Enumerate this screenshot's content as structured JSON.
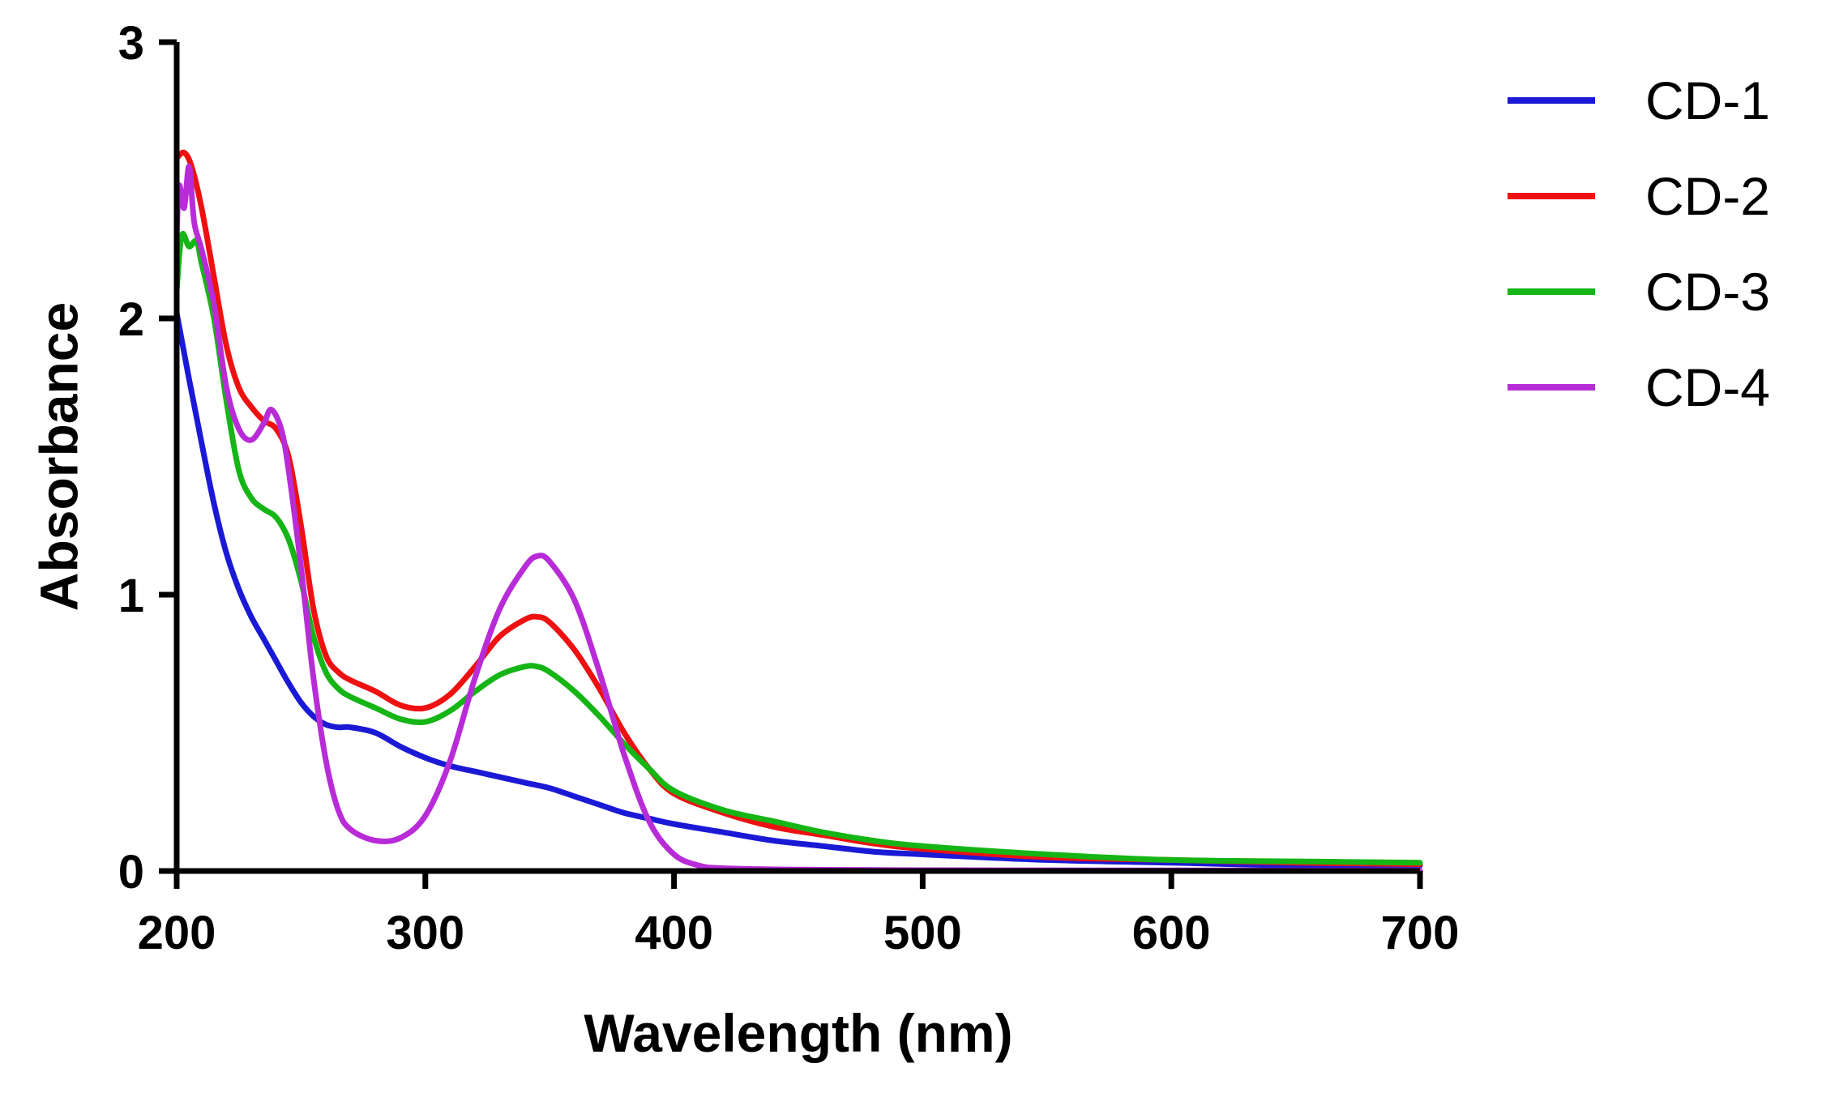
{
  "chart_data": {
    "type": "line",
    "title": "",
    "xlabel": "Wavelength (nm)",
    "ylabel": "Absorbance",
    "xlim": [
      200,
      700
    ],
    "ylim": [
      0,
      3
    ],
    "xticks": [
      "200",
      "300",
      "400",
      "500",
      "600",
      "700"
    ],
    "yticks": [
      "0",
      "1",
      "2",
      "3"
    ],
    "grid": false,
    "legend_position": "top-right",
    "series": [
      {
        "name": "CD-1",
        "color": "#1a1ad6",
        "points": [
          [
            200,
            2.02
          ],
          [
            205,
            1.78
          ],
          [
            210,
            1.55
          ],
          [
            215,
            1.33
          ],
          [
            220,
            1.15
          ],
          [
            225,
            1.02
          ],
          [
            230,
            0.92
          ],
          [
            235,
            0.84
          ],
          [
            240,
            0.76
          ],
          [
            245,
            0.68
          ],
          [
            250,
            0.61
          ],
          [
            255,
            0.56
          ],
          [
            260,
            0.53
          ],
          [
            265,
            0.52
          ],
          [
            270,
            0.52
          ],
          [
            280,
            0.5
          ],
          [
            290,
            0.45
          ],
          [
            300,
            0.41
          ],
          [
            310,
            0.38
          ],
          [
            320,
            0.36
          ],
          [
            330,
            0.34
          ],
          [
            340,
            0.32
          ],
          [
            350,
            0.3
          ],
          [
            360,
            0.27
          ],
          [
            370,
            0.24
          ],
          [
            380,
            0.21
          ],
          [
            390,
            0.19
          ],
          [
            400,
            0.17
          ],
          [
            420,
            0.14
          ],
          [
            440,
            0.11
          ],
          [
            460,
            0.09
          ],
          [
            480,
            0.07
          ],
          [
            500,
            0.06
          ],
          [
            550,
            0.04
          ],
          [
            600,
            0.03
          ],
          [
            650,
            0.02
          ],
          [
            700,
            0.02
          ]
        ]
      },
      {
        "name": "CD-2",
        "color": "#ee1111",
        "points": [
          [
            200,
            2.58
          ],
          [
            203,
            2.6
          ],
          [
            206,
            2.55
          ],
          [
            210,
            2.4
          ],
          [
            215,
            2.15
          ],
          [
            220,
            1.9
          ],
          [
            225,
            1.75
          ],
          [
            230,
            1.68
          ],
          [
            235,
            1.63
          ],
          [
            240,
            1.6
          ],
          [
            245,
            1.5
          ],
          [
            250,
            1.25
          ],
          [
            255,
            0.95
          ],
          [
            260,
            0.78
          ],
          [
            265,
            0.72
          ],
          [
            270,
            0.69
          ],
          [
            280,
            0.65
          ],
          [
            290,
            0.6
          ],
          [
            300,
            0.59
          ],
          [
            310,
            0.64
          ],
          [
            320,
            0.74
          ],
          [
            330,
            0.85
          ],
          [
            340,
            0.91
          ],
          [
            345,
            0.92
          ],
          [
            350,
            0.9
          ],
          [
            360,
            0.8
          ],
          [
            370,
            0.66
          ],
          [
            380,
            0.5
          ],
          [
            390,
            0.37
          ],
          [
            400,
            0.28
          ],
          [
            420,
            0.21
          ],
          [
            440,
            0.16
          ],
          [
            460,
            0.13
          ],
          [
            480,
            0.1
          ],
          [
            500,
            0.08
          ],
          [
            550,
            0.05
          ],
          [
            600,
            0.04
          ],
          [
            650,
            0.03
          ],
          [
            700,
            0.025
          ]
        ]
      },
      {
        "name": "CD-3",
        "color": "#15b515",
        "points": [
          [
            200,
            2.1
          ],
          [
            202,
            2.3
          ],
          [
            205,
            2.26
          ],
          [
            208,
            2.28
          ],
          [
            210,
            2.2
          ],
          [
            215,
            2.0
          ],
          [
            220,
            1.7
          ],
          [
            225,
            1.45
          ],
          [
            230,
            1.35
          ],
          [
            235,
            1.31
          ],
          [
            240,
            1.28
          ],
          [
            245,
            1.2
          ],
          [
            250,
            1.05
          ],
          [
            255,
            0.85
          ],
          [
            260,
            0.72
          ],
          [
            265,
            0.66
          ],
          [
            270,
            0.63
          ],
          [
            280,
            0.59
          ],
          [
            290,
            0.55
          ],
          [
            300,
            0.54
          ],
          [
            310,
            0.58
          ],
          [
            320,
            0.65
          ],
          [
            330,
            0.71
          ],
          [
            340,
            0.74
          ],
          [
            345,
            0.74
          ],
          [
            350,
            0.72
          ],
          [
            360,
            0.65
          ],
          [
            370,
            0.56
          ],
          [
            380,
            0.46
          ],
          [
            390,
            0.37
          ],
          [
            400,
            0.29
          ],
          [
            420,
            0.22
          ],
          [
            440,
            0.18
          ],
          [
            460,
            0.14
          ],
          [
            480,
            0.11
          ],
          [
            500,
            0.09
          ],
          [
            550,
            0.06
          ],
          [
            600,
            0.04
          ],
          [
            650,
            0.035
          ],
          [
            700,
            0.03
          ]
        ]
      },
      {
        "name": "CD-4",
        "color": "#b82cd8",
        "points": [
          [
            200,
            2.3
          ],
          [
            201,
            2.48
          ],
          [
            203,
            2.4
          ],
          [
            205,
            2.55
          ],
          [
            207,
            2.35
          ],
          [
            210,
            2.25
          ],
          [
            215,
            2.05
          ],
          [
            220,
            1.75
          ],
          [
            225,
            1.6
          ],
          [
            230,
            1.56
          ],
          [
            235,
            1.62
          ],
          [
            238,
            1.67
          ],
          [
            242,
            1.6
          ],
          [
            245,
            1.45
          ],
          [
            250,
            1.1
          ],
          [
            255,
            0.7
          ],
          [
            260,
            0.4
          ],
          [
            265,
            0.22
          ],
          [
            270,
            0.15
          ],
          [
            280,
            0.11
          ],
          [
            290,
            0.12
          ],
          [
            300,
            0.2
          ],
          [
            310,
            0.4
          ],
          [
            320,
            0.7
          ],
          [
            330,
            0.95
          ],
          [
            340,
            1.1
          ],
          [
            345,
            1.14
          ],
          [
            350,
            1.12
          ],
          [
            360,
            0.98
          ],
          [
            370,
            0.72
          ],
          [
            380,
            0.42
          ],
          [
            390,
            0.18
          ],
          [
            400,
            0.06
          ],
          [
            410,
            0.02
          ],
          [
            420,
            0.01
          ],
          [
            450,
            0.005
          ],
          [
            500,
            0.003
          ],
          [
            600,
            0.002
          ],
          [
            700,
            0.002
          ]
        ]
      }
    ]
  }
}
